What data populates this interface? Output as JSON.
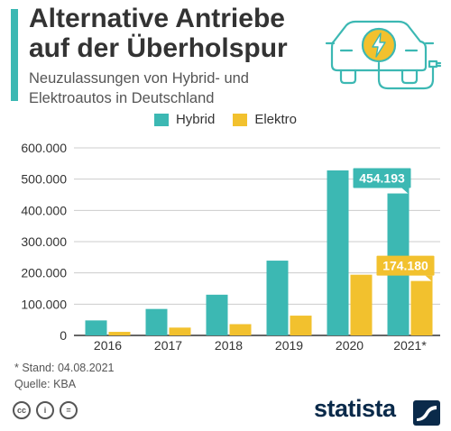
{
  "header": {
    "title_line1": "Alternative Antriebe",
    "title_line2": "auf der Überholspur",
    "subtitle_line1": "Neuzulassungen von Hybrid- und",
    "subtitle_line2": "Elektroautos in Deutschland"
  },
  "icons": {
    "illustration": "electric-car-plug-icon",
    "creative_commons": [
      "cc-icon",
      "by-person-icon",
      "nd-equals-icon"
    ],
    "brand_mark": "statista-logo-icon"
  },
  "colors": {
    "accent": "#3cb8b3",
    "hybrid": "#3cb8b3",
    "elektro": "#f2c12e",
    "text": "#333333",
    "grid": "#cccccc",
    "brand": "#0a2a4a"
  },
  "footer": {
    "note": "* Stand: 04.08.2021",
    "source": "Quelle: KBA",
    "brand": "statista",
    "cc_labels": [
      "cc",
      "i",
      "="
    ]
  },
  "chart_data": {
    "type": "bar",
    "categories": [
      "2016",
      "2017",
      "2018",
      "2019",
      "2020",
      "2021*"
    ],
    "series": [
      {
        "name": "Hybrid",
        "values": [
          47996,
          84675,
          130258,
          239250,
          527864,
          454193
        ]
      },
      {
        "name": "Elektro",
        "values": [
          11410,
          25056,
          36062,
          63281,
          194163,
          174180
        ]
      }
    ],
    "data_labels": [
      {
        "series": "Hybrid",
        "category": "2021*",
        "text": "454.193"
      },
      {
        "series": "Elektro",
        "category": "2021*",
        "text": "174.180"
      }
    ],
    "yticks": [
      "0",
      "100.000",
      "200.000",
      "300.000",
      "400.000",
      "500.000",
      "600.000"
    ],
    "ylim": [
      0,
      600000
    ],
    "grid": true,
    "legend": "top-center"
  }
}
